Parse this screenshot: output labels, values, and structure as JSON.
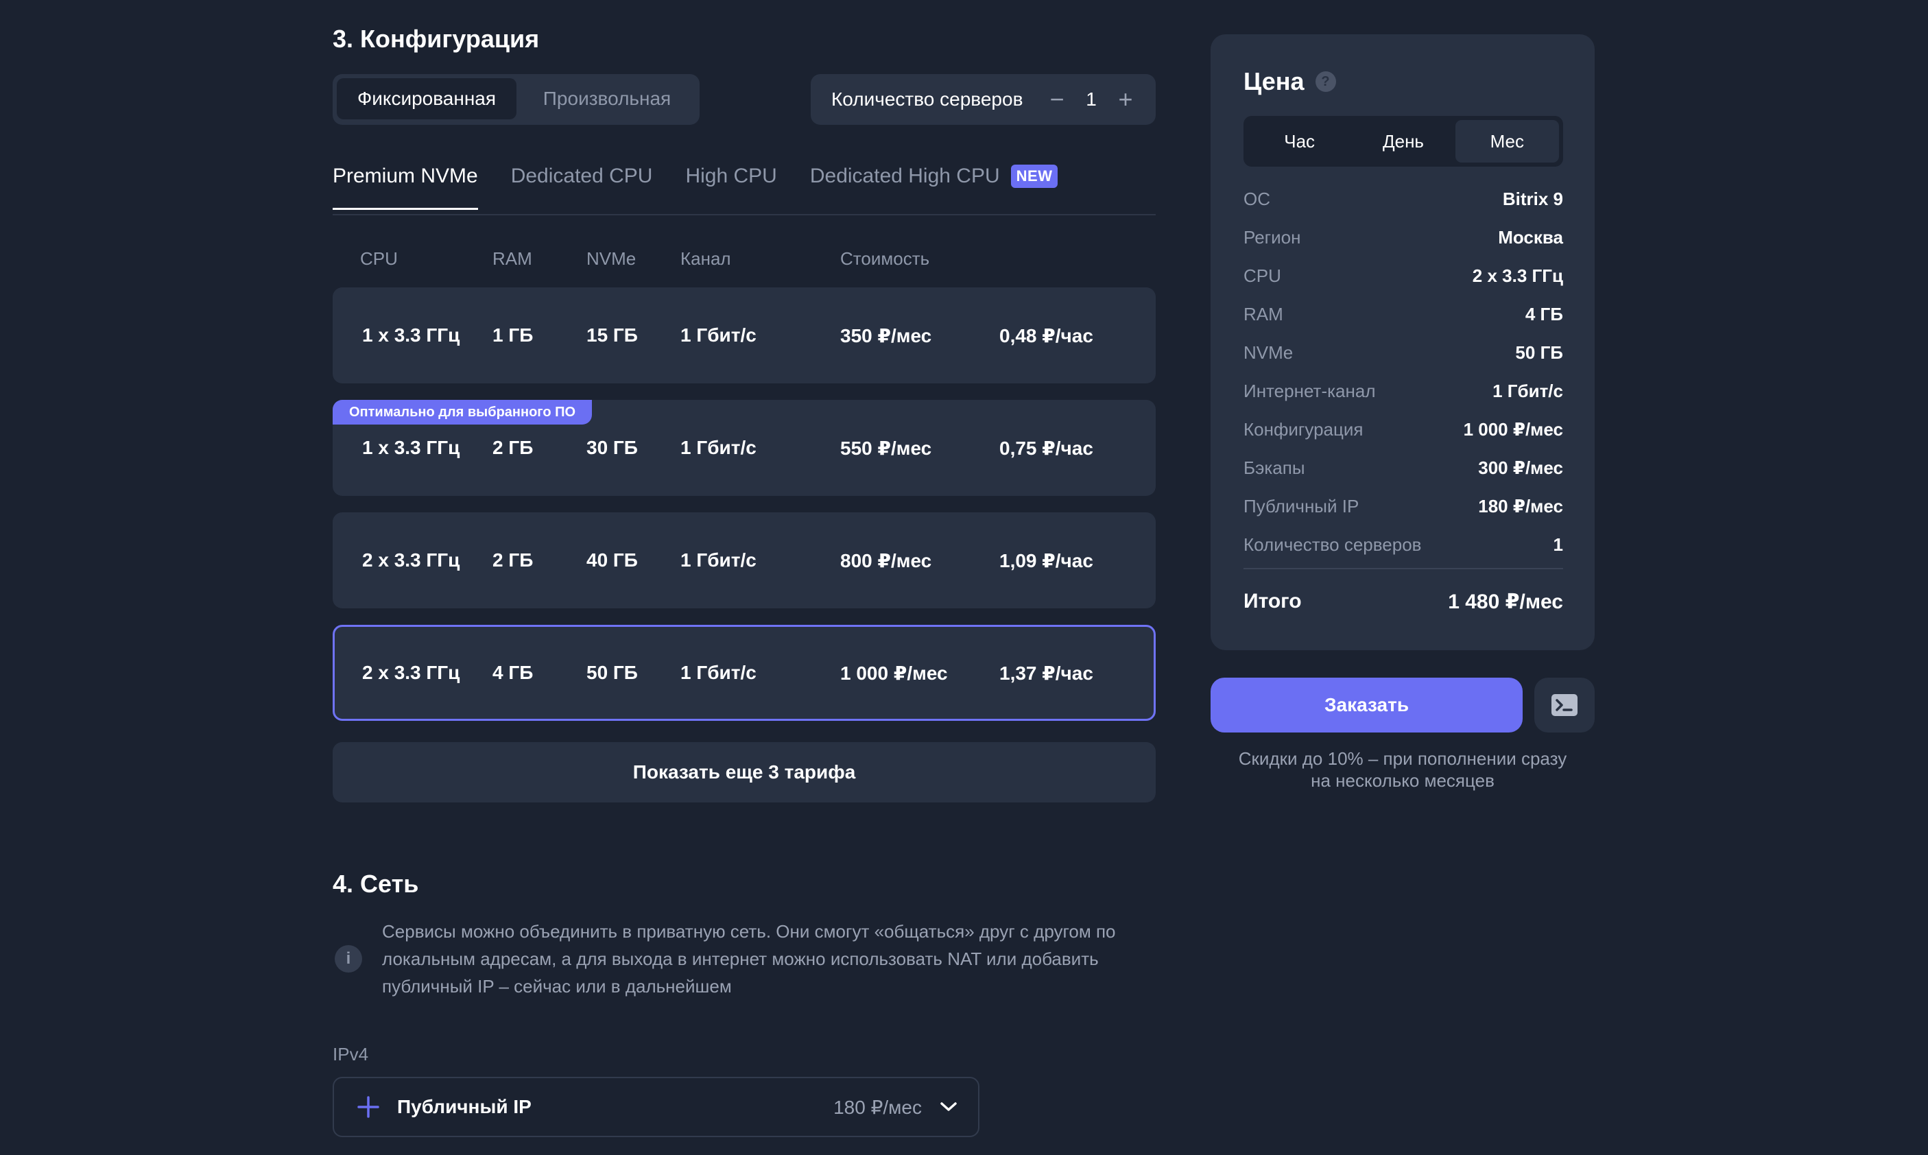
{
  "config": {
    "title": "3. Конфигурация",
    "mode": {
      "options": [
        "Фиксированная",
        "Произвольная"
      ],
      "selected": "Фиксированная"
    },
    "servers": {
      "label": "Количество серверов",
      "value": "1",
      "minus": "−",
      "plus": "+"
    },
    "tabs": [
      {
        "label": "Premium NVMe",
        "active": true
      },
      {
        "label": "Dedicated CPU",
        "active": false
      },
      {
        "label": "High CPU",
        "active": false
      },
      {
        "label": "Dedicated High CPU",
        "active": false,
        "badge": "NEW"
      }
    ],
    "columns": [
      "CPU",
      "RAM",
      "NVMe",
      "Канал",
      "Стоимость"
    ],
    "tariffs": [
      {
        "cpu": "1 x 3.3 ГГц",
        "ram": "1 ГБ",
        "nvme": "15 ГБ",
        "channel": "1 Гбит/с",
        "month": "350 ₽/мес",
        "hour": "0,48 ₽/час",
        "selected": false,
        "badge": ""
      },
      {
        "cpu": "1 x 3.3 ГГц",
        "ram": "2 ГБ",
        "nvme": "30 ГБ",
        "channel": "1 Гбит/с",
        "month": "550 ₽/мес",
        "hour": "0,75 ₽/час",
        "selected": false,
        "badge": "Оптимально для выбранного ПО"
      },
      {
        "cpu": "2 x 3.3 ГГц",
        "ram": "2 ГБ",
        "nvme": "40 ГБ",
        "channel": "1 Гбит/с",
        "month": "800 ₽/мес",
        "hour": "1,09 ₽/час",
        "selected": false,
        "badge": ""
      },
      {
        "cpu": "2 x 3.3 ГГц",
        "ram": "4 ГБ",
        "nvme": "50 ГБ",
        "channel": "1 Гбит/с",
        "month": "1 000 ₽/мес",
        "hour": "1,37 ₽/час",
        "selected": true,
        "badge": ""
      }
    ],
    "show_more": "Показать еще 3 тарифа"
  },
  "network": {
    "title": "4. Сеть",
    "info_icon": "i",
    "info_lines": [
      "Сервисы можно объединить в приватную сеть. Они смогут «общаться» друг с другом по",
      "локальным адресам, а для выхода в интернет можно использовать NAT или добавить",
      "публичный IP – сейчас или в дальнейшем"
    ],
    "ipv4_label": "IPv4",
    "public_ip": {
      "label": "Публичный IP",
      "price": "180 ₽/мес"
    }
  },
  "price": {
    "title": "Цена",
    "help_icon": "?",
    "periods": [
      "Час",
      "День",
      "Мес"
    ],
    "period_selected": "Мес",
    "specs": [
      {
        "label": "ОС",
        "value": "Bitrix 9"
      },
      {
        "label": "Регион",
        "value": "Москва"
      },
      {
        "label": "CPU",
        "value": "2 x 3.3 ГГц"
      },
      {
        "label": "RAM",
        "value": "4 ГБ"
      },
      {
        "label": "NVMe",
        "value": "50 ГБ"
      },
      {
        "label": "Интернет-канал",
        "value": "1 Гбит/с"
      },
      {
        "label": "Конфигурация",
        "value": "1 000 ₽/мес"
      },
      {
        "label": "Бэкапы",
        "value": "300 ₽/мес"
      },
      {
        "label": "Публичный IP",
        "value": "180 ₽/мес"
      },
      {
        "label": "Количество серверов",
        "value": "1"
      }
    ],
    "total_label": "Итого",
    "total_value": "1 480 ₽/мес",
    "order_label": "Заказать",
    "discount_lines": [
      "Скидки до 10% – при пополнении сразу",
      "на несколько месяцев"
    ]
  },
  "colors": {
    "background": "#1b2230",
    "card": "#283142",
    "accent": "#6b6ff3"
  },
  "icons": {
    "plus": "plus-icon",
    "chevron": "chevron-down-icon",
    "terminal": "terminal-icon",
    "help": "help-icon",
    "info": "info-icon"
  }
}
